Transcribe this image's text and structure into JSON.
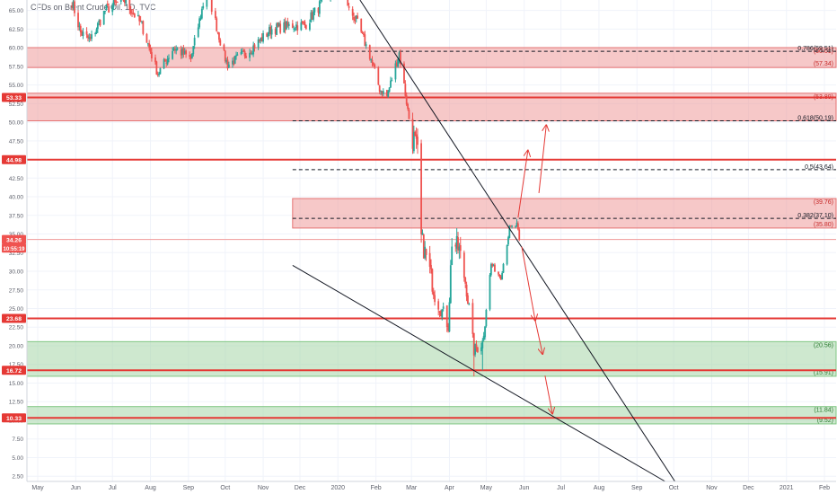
{
  "header": {
    "symbol_title": "CFDs on Brent Crude Oil, 1D, TVC"
  },
  "colors": {
    "up": "#26a69a",
    "down": "#ef5350",
    "resistance_zone": "#ef9a9a",
    "support_zone": "#a5d6a7",
    "level_line": "#e53935",
    "trendline": "#131722",
    "grid": "#f0f3fa",
    "axis_text": "#5d606b",
    "arrow": "#e53935"
  },
  "chart_data": {
    "type": "candlestick",
    "title": "CFDs on Brent Crude Oil, 1D, TVC",
    "y_axis": {
      "range": [
        1.8,
        66.4
      ],
      "ticks": [
        "2.50",
        "5.00",
        "7.50",
        "10.00",
        "12.50",
        "15.00",
        "17.50",
        "20.00",
        "22.50",
        "25.00",
        "27.50",
        "30.00",
        "32.50",
        "35.00",
        "37.50",
        "40.00",
        "42.50",
        "45.00",
        "47.50",
        "50.00",
        "52.50",
        "55.00",
        "57.50",
        "60.00",
        "62.50",
        "65.00"
      ]
    },
    "x_axis": {
      "labels": [
        {
          "label": "May",
          "x": "2019-05-01"
        },
        {
          "label": "Jun",
          "x": "2019-06-01"
        },
        {
          "label": "Jul",
          "x": "2019-07-01"
        },
        {
          "label": "Aug",
          "x": "2019-08-01"
        },
        {
          "label": "Sep",
          "x": "2019-09-01"
        },
        {
          "label": "Oct",
          "x": "2019-10-01"
        },
        {
          "label": "Nov",
          "x": "2019-11-01"
        },
        {
          "label": "Dec",
          "x": "2019-12-01"
        },
        {
          "label": "2020",
          "x": "2020-01-01"
        },
        {
          "label": "Feb",
          "x": "2020-02-01"
        },
        {
          "label": "Mar",
          "x": "2020-03-01"
        },
        {
          "label": "Apr",
          "x": "2020-04-01"
        },
        {
          "label": "May",
          "x": "2020-05-01"
        },
        {
          "label": "Jun",
          "x": "2020-06-01"
        },
        {
          "label": "Jul",
          "x": "2020-07-01"
        },
        {
          "label": "Aug",
          "x": "2020-08-01"
        },
        {
          "label": "Sep",
          "x": "2020-09-01"
        },
        {
          "label": "Oct",
          "x": "2020-10-01"
        },
        {
          "label": "Nov",
          "x": "2020-11-01"
        },
        {
          "label": "Dec",
          "x": "2020-12-01"
        },
        {
          "label": "2021",
          "x": "2021-01-01"
        },
        {
          "label": "Feb",
          "x": "2021-02-01"
        }
      ]
    },
    "price_badges": [
      {
        "label": "53.33",
        "value": 53.33,
        "line": true
      },
      {
        "label": "44.98",
        "value": 44.98,
        "line": true
      },
      {
        "label": "34.26",
        "value": 34.26,
        "line": false
      },
      {
        "label": "10:55:19",
        "value": 33.1,
        "line": false
      },
      {
        "label": "23.68",
        "value": 23.68,
        "line": true
      },
      {
        "label": "16.72",
        "value": 16.72,
        "line": true
      },
      {
        "label": "10.33",
        "value": 10.33,
        "line": true
      }
    ],
    "zones": [
      {
        "kind": "resistance",
        "from": 57.34,
        "to": 60.01,
        "start": "2019-04-20",
        "top_label": "(60.01)",
        "bottom_label": "(57.34)"
      },
      {
        "kind": "resistance",
        "from": 50.19,
        "to": 53.89,
        "start": "2019-04-20",
        "top_label": "(53.89)",
        "bottom_label": ""
      },
      {
        "kind": "resistance",
        "from": 35.8,
        "to": 39.76,
        "start": "2019-11-25",
        "top_label": "(39.76)",
        "bottom_label": "(35.80)"
      },
      {
        "kind": "support",
        "from": 15.91,
        "to": 20.56,
        "start": "2019-04-20",
        "top_label": "(20.56)",
        "bottom_label": "(15.91)"
      },
      {
        "kind": "support",
        "from": 9.52,
        "to": 11.84,
        "start": "2019-04-20",
        "top_label": "(11.84)",
        "bottom_label": "(9.52)"
      }
    ],
    "fib_levels": [
      {
        "ratio": "0.786",
        "value": 59.51,
        "label": "0.786(59.51)"
      },
      {
        "ratio": "0.618",
        "value": 50.19,
        "label": "0.618(50.19)"
      },
      {
        "ratio": "0.5",
        "value": 43.64,
        "label": "0.5(43.64)"
      },
      {
        "ratio": "0.382",
        "value": 37.1,
        "label": "0.382(37.10)"
      }
    ],
    "fib_start": "2019-11-25",
    "trendlines": [
      {
        "x1": "2020-01-19",
        "y1": 66.4,
        "x2": "2020-10-02",
        "y2": 1.8
      },
      {
        "x1": "2019-11-25",
        "y1": 30.8,
        "x2": "2020-09-24",
        "y2": 1.8
      }
    ],
    "arrows": [
      {
        "x1": "2020-05-27",
        "y1": 37.2,
        "x2": "2020-06-04",
        "y2": 46.2
      },
      {
        "x1": "2020-06-13",
        "y1": 40.5,
        "x2": "2020-06-19",
        "y2": 49.6
      },
      {
        "x1": "2020-05-30",
        "y1": 33.3,
        "x2": "2020-06-10",
        "y2": 23.4
      },
      {
        "x1": "2020-06-10",
        "y1": 23.4,
        "x2": "2020-06-16",
        "y2": 18.9
      },
      {
        "x1": "2020-06-18",
        "y1": 16.0,
        "x2": "2020-06-24",
        "y2": 10.9
      }
    ],
    "anchors": [
      [
        "2019-05-20",
        71.5
      ],
      [
        "2019-06-05",
        62.0
      ],
      [
        "2019-06-13",
        61.0
      ],
      [
        "2019-06-25",
        65.0
      ],
      [
        "2019-07-10",
        66.5
      ],
      [
        "2019-07-25",
        63.0
      ],
      [
        "2019-08-07",
        56.5
      ],
      [
        "2019-08-20",
        60.0
      ],
      [
        "2019-09-03",
        58.5
      ],
      [
        "2019-09-16",
        68.0
      ],
      [
        "2019-09-30",
        59.0
      ],
      [
        "2019-10-03",
        57.7
      ],
      [
        "2019-10-20",
        59.5
      ],
      [
        "2019-11-08",
        62.5
      ],
      [
        "2019-11-25",
        63.0
      ],
      [
        "2019-12-05",
        63.0
      ],
      [
        "2019-12-20",
        66.3
      ],
      [
        "2020-01-06",
        68.5
      ],
      [
        "2020-01-10",
        65.0
      ],
      [
        "2020-01-15",
        64.0
      ],
      [
        "2020-01-27",
        59.0
      ],
      [
        "2020-02-04",
        54.5
      ],
      [
        "2020-02-10",
        53.5
      ],
      [
        "2020-02-20",
        59.3
      ],
      [
        "2020-02-28",
        50.5
      ],
      [
        "2020-03-06",
        45.3
      ],
      [
        "2020-03-09",
        34.4
      ],
      [
        "2020-03-16",
        30.0
      ],
      [
        "2020-03-20",
        26.9
      ],
      [
        "2020-03-31",
        22.8
      ],
      [
        "2020-04-03",
        34.1
      ],
      [
        "2020-04-09",
        32.8
      ],
      [
        "2020-04-15",
        27.7
      ],
      [
        "2020-04-21",
        19.3
      ],
      [
        "2020-04-28",
        20.5
      ],
      [
        "2020-05-05",
        30.9
      ],
      [
        "2020-05-13",
        29.2
      ],
      [
        "2020-05-20",
        35.7
      ],
      [
        "2020-05-26",
        36.2
      ],
      [
        "2020-05-28",
        34.26
      ]
    ],
    "event_extremes": [
      {
        "x": "2020-03-09",
        "high": 38.5
      },
      {
        "x": "2020-04-21",
        "low": 15.9
      },
      {
        "x": "2020-04-28",
        "low": 16.7
      },
      {
        "x": "2020-05-26",
        "high": 37.0
      }
    ],
    "last_price": 34.26,
    "current_time": "10:55:19"
  }
}
